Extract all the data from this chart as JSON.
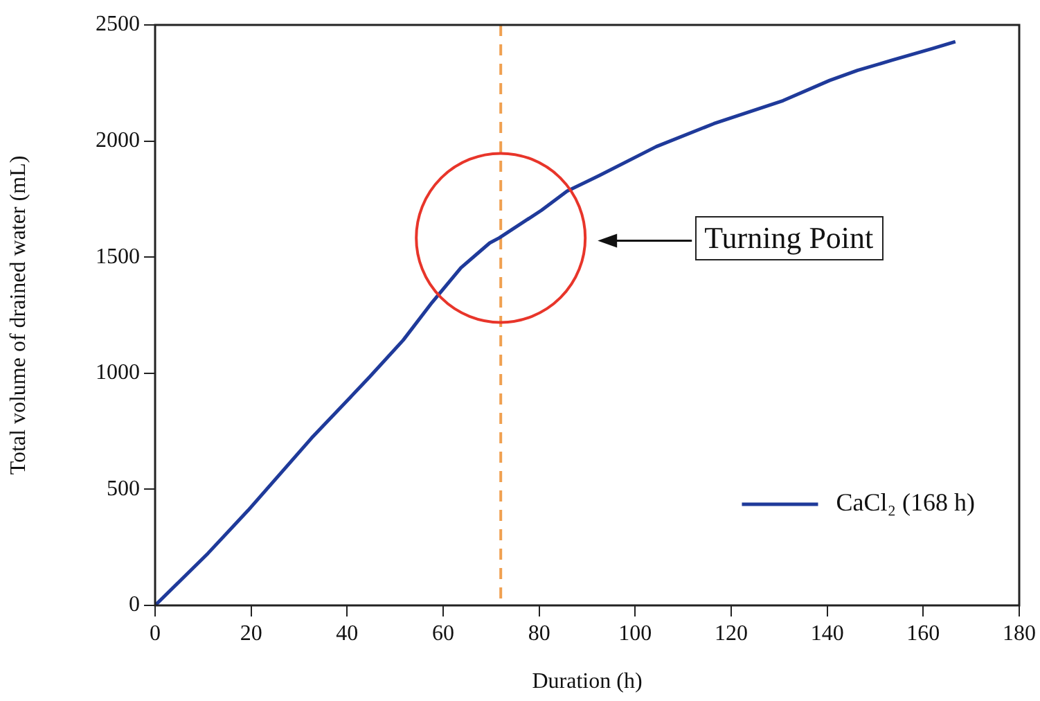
{
  "chart_data": {
    "type": "line",
    "xlabel": "Duration (h)",
    "ylabel": "Total volume of drained water (mL)",
    "xlim": [
      0,
      180
    ],
    "xticks": [
      0,
      20,
      40,
      60,
      80,
      100,
      120,
      140,
      160,
      180
    ],
    "ylim": [
      0,
      2500
    ],
    "yticks": [
      0,
      500,
      1000,
      1500,
      2000,
      2500
    ],
    "grid": false,
    "legend": "bottom right",
    "marker": "none",
    "line_style": "solid",
    "series": [
      {
        "name": "CaCl₂ (168 h)",
        "color": "#1f3a9a",
        "x": [
          0,
          11,
          19.4,
          32.6,
          44.6,
          51.7,
          57.7,
          63.7,
          69.7,
          71.7,
          80.5,
          85.8,
          92.5,
          104.4,
          116.4,
          130.8,
          140.5,
          146.3,
          153.5,
          161.9,
          166.7
        ],
        "values": [
          0,
          224,
          410,
          721,
          982,
          1143,
          1305,
          1454,
          1561,
          1583,
          1702,
          1784,
          1851,
          1976,
          2075,
          2174,
          2261,
          2304,
          2348,
          2398,
          2428
        ]
      }
    ],
    "ref_lines": [
      {
        "axis": "x",
        "value": 72,
        "color": "#f0a050",
        "line_style": "dashed"
      }
    ],
    "annotations": [
      "Turning Point"
    ]
  }
}
